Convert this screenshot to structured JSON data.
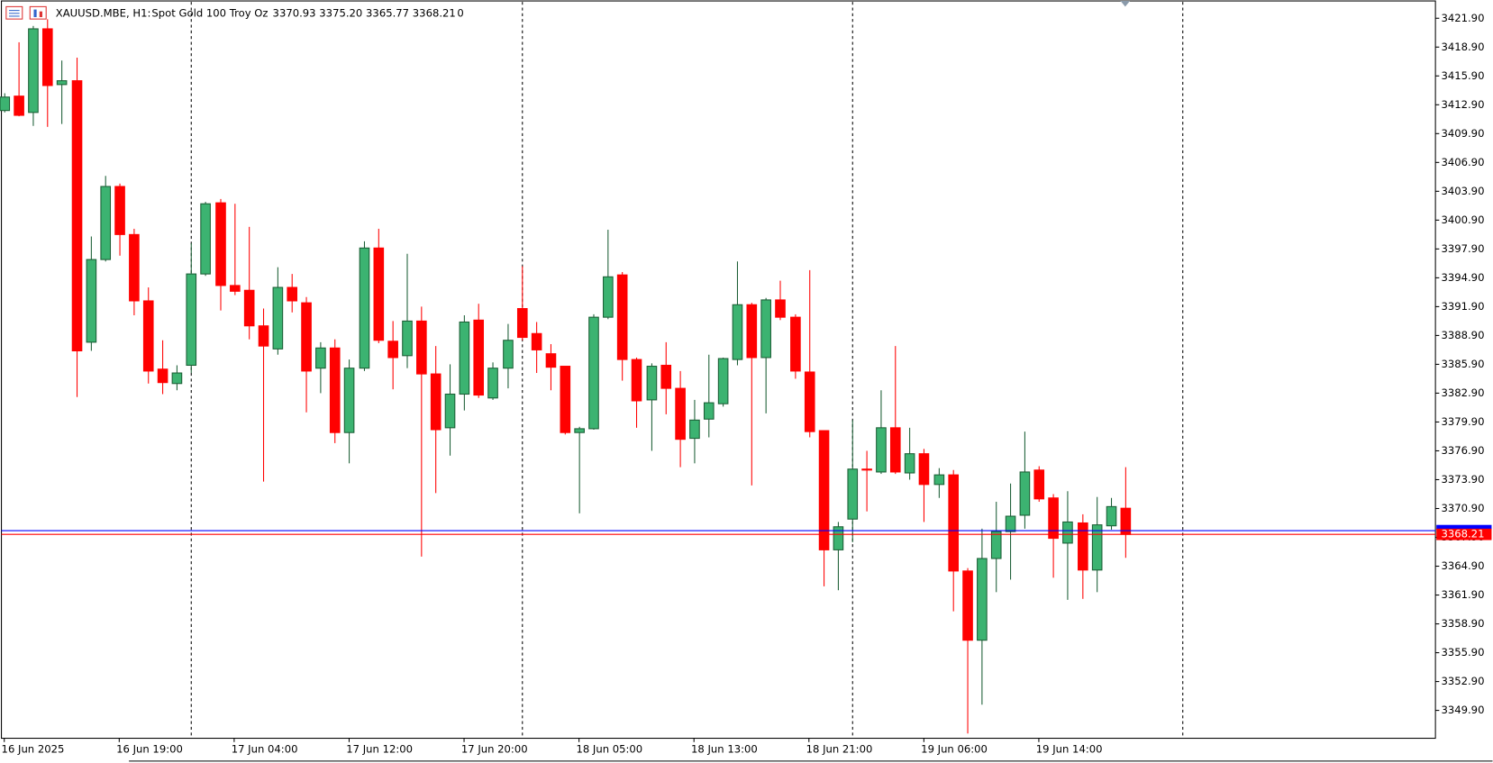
{
  "header": {
    "symbol": "XAUUSD.MBE, H1:",
    "description": "Spot Gold 100 Troy Oz",
    "quote": [
      "3370.93",
      "3375.20",
      "3365.77",
      "3368.21"
    ],
    "volume": "0"
  },
  "chart_data": {
    "type": "candlestick",
    "categories": [
      "16 Jun 2025",
      null,
      null,
      null,
      null,
      null,
      null,
      null,
      "16 Jun 19:00",
      null,
      null,
      null,
      null,
      null,
      null,
      null,
      "17 Jun 04:00",
      null,
      null,
      null,
      null,
      null,
      null,
      null,
      "17 Jun 12:00",
      null,
      null,
      null,
      null,
      null,
      null,
      null,
      "17 Jun 20:00",
      null,
      null,
      null,
      null,
      null,
      null,
      null,
      "18 Jun 05:00",
      null,
      null,
      null,
      null,
      null,
      null,
      null,
      "18 Jun 13:00",
      null,
      null,
      null,
      null,
      null,
      null,
      null,
      "18 Jun 21:00",
      null,
      null,
      null,
      null,
      null,
      null,
      null,
      "19 Jun 06:00",
      null,
      null,
      null,
      null,
      null,
      null,
      null,
      "19 Jun 14:00",
      null,
      null,
      null,
      null,
      null,
      null
    ],
    "open": [
      3412.3,
      3413.8,
      3412.1,
      3420.8,
      3415.0,
      3415.4,
      3388.2,
      3396.8,
      3404.4,
      3399.4,
      3392.5,
      3385.4,
      3383.9,
      3385.8,
      3395.3,
      3402.7,
      3394.1,
      3393.6,
      3389.9,
      3387.5,
      3393.9,
      3392.3,
      3385.5,
      3387.6,
      3378.8,
      3385.5,
      3398.0,
      3388.3,
      3386.8,
      3390.4,
      3384.9,
      3379.3,
      3382.8,
      3390.5,
      3382.4,
      3385.5,
      3391.7,
      3389.1,
      3387.0,
      3385.7,
      3378.8,
      3379.2,
      3390.8,
      3395.2,
      3386.4,
      3382.2,
      3385.8,
      3383.4,
      3378.2,
      3380.2,
      3381.8,
      3386.4,
      3392.1,
      3386.6,
      3392.6,
      3390.8,
      3385.1,
      3379.0,
      3366.6,
      3369.8,
      3375.0,
      3374.7,
      3379.3,
      3374.6,
      3376.6,
      3373.4,
      3374.4,
      3364.4,
      3357.2,
      3365.7,
      3368.5,
      3370.2,
      3374.9,
      3372.0,
      3367.3,
      3369.4,
      3364.5,
      3369.1,
      3370.93
    ],
    "high": [
      3414.1,
      3419.4,
      3421.1,
      3421.8,
      3417.5,
      3417.8,
      3399.2,
      3405.5,
      3404.7,
      3400.0,
      3393.9,
      3388.4,
      3385.8,
      3398.5,
      3402.8,
      3403.1,
      3402.6,
      3400.2,
      3391.7,
      3396.0,
      3395.3,
      3392.9,
      3388.2,
      3388.5,
      3386.4,
      3398.7,
      3400.0,
      3390.4,
      3397.4,
      3391.9,
      3387.8,
      3385.9,
      3391.0,
      3392.2,
      3386.1,
      3390.1,
      3396.1,
      3390.3,
      3388.0,
      3385.7,
      3379.4,
      3391.1,
      3399.9,
      3395.5,
      3386.6,
      3386.0,
      3388.2,
      3385.2,
      3382.2,
      3386.9,
      3386.6,
      3396.6,
      3392.3,
      3392.8,
      3394.6,
      3391.1,
      3395.7,
      3379.0,
      3369.5,
      3380.1,
      3376.9,
      3383.2,
      3387.8,
      3379.3,
      3377.1,
      3375.1,
      3374.9,
      3364.7,
      3368.8,
      3371.6,
      3373.5,
      3378.9,
      3375.3,
      3372.4,
      3372.7,
      3370.3,
      3372.1,
      3372.0,
      3375.2
    ],
    "low": [
      3412.1,
      3411.7,
      3410.7,
      3410.6,
      3410.9,
      3382.5,
      3387.3,
      3396.6,
      3397.2,
      3391.0,
      3383.9,
      3382.8,
      3383.2,
      3385.0,
      3395.1,
      3391.5,
      3393.1,
      3388.5,
      3373.7,
      3386.9,
      3391.3,
      3380.9,
      3382.9,
      3377.7,
      3375.6,
      3385.2,
      3388.1,
      3383.3,
      3385.5,
      3365.9,
      3372.5,
      3376.4,
      3381.1,
      3382.4,
      3382.2,
      3383.4,
      3388.4,
      3385.0,
      3383.2,
      3378.6,
      3370.4,
      3379.1,
      3390.6,
      3384.2,
      3379.3,
      3376.9,
      3380.7,
      3375.2,
      3375.6,
      3378.3,
      3381.5,
      3385.8,
      3373.3,
      3380.8,
      3390.5,
      3384.4,
      3378.3,
      3362.8,
      3362.4,
      3367.4,
      3370.6,
      3374.5,
      3374.5,
      3373.9,
      3369.5,
      3372.0,
      3360.2,
      3347.5,
      3350.5,
      3362.2,
      3363.5,
      3368.8,
      3371.6,
      3363.7,
      3361.4,
      3361.5,
      3362.2,
      3368.7,
      3365.77
    ],
    "close": [
      3413.7,
      3411.8,
      3420.8,
      3414.9,
      3415.4,
      3387.3,
      3396.8,
      3404.4,
      3399.4,
      3392.5,
      3385.2,
      3384.0,
      3385.0,
      3395.3,
      3402.6,
      3394.1,
      3393.5,
      3389.9,
      3387.8,
      3393.9,
      3392.5,
      3385.2,
      3387.6,
      3378.8,
      3385.5,
      3398.0,
      3388.4,
      3386.6,
      3390.4,
      3384.9,
      3379.1,
      3382.8,
      3390.3,
      3382.7,
      3385.5,
      3388.4,
      3388.7,
      3387.4,
      3385.6,
      3378.8,
      3379.2,
      3390.8,
      3395.0,
      3386.4,
      3382.1,
      3385.7,
      3383.4,
      3378.1,
      3380.1,
      3381.9,
      3386.5,
      3392.1,
      3386.6,
      3392.6,
      3390.8,
      3385.2,
      3378.9,
      3366.6,
      3369.0,
      3375.0,
      3374.9,
      3379.3,
      3374.7,
      3376.6,
      3373.4,
      3374.4,
      3364.4,
      3357.2,
      3365.7,
      3368.5,
      3370.1,
      3374.7,
      3371.9,
      3367.8,
      3369.5,
      3364.5,
      3369.2,
      3371.1,
      3368.21
    ],
    "up_color": "#3cb371",
    "up_edge": "#1b5e35",
    "down_color": "#ff0000",
    "bid": 3368.21,
    "bid_color": "#ff0000",
    "ask": 3368.6,
    "ask_color": "#0000ff",
    "ylim": [
      3347.0,
      3423.6
    ],
    "yticks": [
      {
        "value": 3421.9,
        "label": "3421.90"
      },
      {
        "value": 3418.9,
        "label": "3418.90"
      },
      {
        "value": 3415.9,
        "label": "3415.90"
      },
      {
        "value": 3412.9,
        "label": "3412.90"
      },
      {
        "value": 3409.9,
        "label": "3409.90"
      },
      {
        "value": 3406.9,
        "label": "3406.90"
      },
      {
        "value": 3403.9,
        "label": "3403.90"
      },
      {
        "value": 3400.9,
        "label": "3400.90"
      },
      {
        "value": 3397.9,
        "label": "3397.90"
      },
      {
        "value": 3394.9,
        "label": "3394.90"
      },
      {
        "value": 3391.9,
        "label": "3391.90"
      },
      {
        "value": 3388.9,
        "label": "3388.90"
      },
      {
        "value": 3385.9,
        "label": "3385.90"
      },
      {
        "value": 3382.9,
        "label": "3382.90"
      },
      {
        "value": 3379.9,
        "label": "3379.90"
      },
      {
        "value": 3376.9,
        "label": "3376.90"
      },
      {
        "value": 3373.9,
        "label": "3373.90"
      },
      {
        "value": 3370.9,
        "label": "3370.90"
      },
      {
        "value": 3367.9,
        "label": "3367.90"
      },
      {
        "value": 3364.9,
        "label": "3364.90"
      },
      {
        "value": 3361.9,
        "label": "3361.90"
      },
      {
        "value": 3358.9,
        "label": "3358.90"
      },
      {
        "value": 3355.9,
        "label": "3355.90"
      },
      {
        "value": 3352.9,
        "label": "3352.90"
      },
      {
        "value": 3349.9,
        "label": "3349.90"
      }
    ],
    "grid": false
  }
}
